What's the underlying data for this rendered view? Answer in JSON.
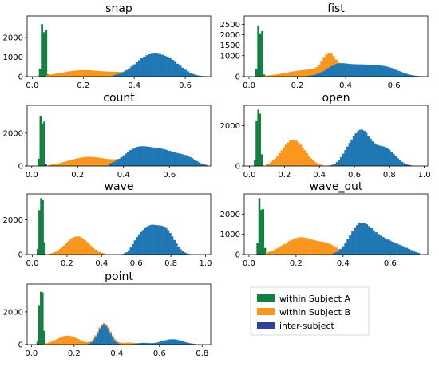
{
  "colors": {
    "within_subject_a": "#138040",
    "within_subject_b": "#f8961e",
    "inter_subject": "#1f77b4",
    "legend_inter_swatch": "#2e3f9c"
  },
  "legend": {
    "entries": [
      {
        "label": "within Subject A",
        "color_key": "within_subject_a"
      },
      {
        "label": "within Subject B",
        "color_key": "within_subject_b"
      },
      {
        "label": "inter-subject",
        "color_key": "inter_subject"
      }
    ]
  },
  "chart_data": [
    {
      "type": "histogram",
      "title": "snap",
      "xlim": [
        -0.02,
        0.7
      ],
      "ylim": [
        0,
        3100
      ],
      "xticks": [
        0.0,
        0.2,
        0.4,
        0.6
      ],
      "xtick_labels": [
        "0.0",
        "0.2",
        "0.4",
        "0.6"
      ],
      "yticks": [
        0,
        1000,
        2000
      ],
      "ytick_labels": [
        "0",
        "1000",
        "2000"
      ],
      "series": [
        {
          "color_key": "within_subject_a",
          "bin_width": 0.008,
          "peaks": [
            [
              0.04,
              2900,
              0.005
            ],
            [
              0.052,
              2650,
              0.004
            ]
          ],
          "range": [
            0.022,
            0.072
          ]
        },
        {
          "color_key": "within_subject_b",
          "bin_width": 0.01,
          "peaks": [
            [
              0.2,
              330,
              0.085
            ],
            [
              0.37,
              180,
              0.06
            ]
          ],
          "range": [
            0.06,
            0.5
          ]
        },
        {
          "color_key": "inter_subject",
          "bin_width": 0.01,
          "peaks": [
            [
              0.46,
              850,
              0.05
            ],
            [
              0.54,
              700,
              0.05
            ],
            [
              0.4,
              200,
              0.05
            ]
          ],
          "range": [
            0.32,
            0.68
          ]
        }
      ]
    },
    {
      "type": "histogram",
      "title": "fist",
      "xlim": [
        -0.02,
        0.74
      ],
      "ylim": [
        0,
        2900
      ],
      "xticks": [
        0.0,
        0.2,
        0.4,
        0.6
      ],
      "xtick_labels": [
        "0.0",
        "0.2",
        "0.4",
        "0.6"
      ],
      "yticks": [
        0,
        1000,
        1500,
        2000,
        2500
      ],
      "ytick_labels": [
        "0",
        "1000",
        "1500",
        "2000",
        "2500"
      ],
      "series": [
        {
          "color_key": "within_subject_a",
          "bin_width": 0.008,
          "peaks": [
            [
              0.04,
              2650,
              0.005
            ],
            [
              0.052,
              2400,
              0.004
            ]
          ],
          "range": [
            0.022,
            0.072
          ]
        },
        {
          "color_key": "within_subject_b",
          "bin_width": 0.01,
          "peaks": [
            [
              0.25,
              330,
              0.09
            ],
            [
              0.33,
              700,
              0.025
            ],
            [
              0.38,
              350,
              0.05
            ]
          ],
          "range": [
            0.06,
            0.56
          ]
        },
        {
          "color_key": "inter_subject",
          "bin_width": 0.01,
          "peaks": [
            [
              0.46,
              560,
              0.09
            ],
            [
              0.36,
              300,
              0.04
            ],
            [
              0.58,
              220,
              0.05
            ]
          ],
          "range": [
            0.24,
            0.72
          ]
        }
      ]
    },
    {
      "type": "histogram",
      "title": "count",
      "xlim": [
        -0.02,
        0.78
      ],
      "ylim": [
        0,
        3700
      ],
      "xticks": [
        0.0,
        0.2,
        0.4,
        0.6
      ],
      "xtick_labels": [
        "0.0",
        "0.2",
        "0.4",
        "0.6"
      ],
      "yticks": [
        0,
        2000
      ],
      "ytick_labels": [
        "0",
        "2000"
      ],
      "series": [
        {
          "color_key": "within_subject_a",
          "bin_width": 0.008,
          "peaks": [
            [
              0.04,
              3300,
              0.005
            ],
            [
              0.052,
              3000,
              0.004
            ]
          ],
          "range": [
            0.022,
            0.072
          ]
        },
        {
          "color_key": "within_subject_b",
          "bin_width": 0.01,
          "peaks": [
            [
              0.25,
              560,
              0.085
            ],
            [
              0.42,
              350,
              0.05
            ]
          ],
          "range": [
            0.08,
            0.56
          ]
        },
        {
          "color_key": "inter_subject",
          "bin_width": 0.01,
          "peaks": [
            [
              0.46,
              1050,
              0.06
            ],
            [
              0.58,
              850,
              0.06
            ],
            [
              0.68,
              400,
              0.04
            ]
          ],
          "range": [
            0.34,
            0.76
          ]
        }
      ]
    },
    {
      "type": "histogram",
      "title": "open",
      "xlim": [
        -0.03,
        1.02
      ],
      "ylim": [
        0,
        3000
      ],
      "xticks": [
        0.0,
        0.2,
        0.4,
        0.6,
        0.8,
        1.0
      ],
      "xtick_labels": [
        "0.0",
        "0.2",
        "0.4",
        "0.6",
        "0.8",
        "1.0"
      ],
      "yticks": [
        0,
        2000
      ],
      "ytick_labels": [
        "0",
        "2000"
      ],
      "series": [
        {
          "color_key": "within_subject_a",
          "bin_width": 0.01,
          "peaks": [
            [
              0.045,
              2850,
              0.007
            ],
            [
              0.06,
              2300,
              0.006
            ]
          ],
          "range": [
            0.02,
            0.09
          ]
        },
        {
          "color_key": "within_subject_b",
          "bin_width": 0.012,
          "peaks": [
            [
              0.25,
              1300,
              0.065
            ]
          ],
          "range": [
            0.1,
            0.42
          ]
        },
        {
          "color_key": "inter_subject",
          "bin_width": 0.012,
          "peaks": [
            [
              0.64,
              1650,
              0.05
            ],
            [
              0.77,
              900,
              0.06
            ],
            [
              0.56,
              500,
              0.04
            ]
          ],
          "range": [
            0.44,
            0.92
          ]
        }
      ]
    },
    {
      "type": "histogram",
      "title": "wave",
      "xlim": [
        -0.03,
        1.03
      ],
      "ylim": [
        0,
        3500
      ],
      "xticks": [
        0.0,
        0.2,
        0.4,
        0.6,
        0.8,
        1.0
      ],
      "xtick_labels": [
        "0.0",
        "0.2",
        "0.4",
        "0.6",
        "0.8",
        "1.0"
      ],
      "yticks": [
        0,
        2000
      ],
      "ytick_labels": [
        "0",
        "2000"
      ],
      "series": [
        {
          "color_key": "within_subject_a",
          "bin_width": 0.01,
          "peaks": [
            [
              0.045,
              3300,
              0.007
            ],
            [
              0.06,
              2800,
              0.006
            ]
          ],
          "range": [
            0.02,
            0.09
          ]
        },
        {
          "color_key": "within_subject_b",
          "bin_width": 0.012,
          "peaks": [
            [
              0.26,
              1050,
              0.065
            ]
          ],
          "range": [
            0.1,
            0.42
          ]
        },
        {
          "color_key": "inter_subject",
          "bin_width": 0.012,
          "peaks": [
            [
              0.67,
              1450,
              0.05
            ],
            [
              0.77,
              1350,
              0.05
            ],
            [
              0.6,
              400,
              0.03
            ]
          ],
          "range": [
            0.52,
            0.93
          ]
        }
      ]
    },
    {
      "type": "histogram",
      "title": "wave_out",
      "xlim": [
        -0.02,
        0.76
      ],
      "ylim": [
        0,
        3000
      ],
      "xticks": [
        0.0,
        0.2,
        0.4,
        0.6
      ],
      "xtick_labels": [
        "0.0",
        "0.2",
        "0.4",
        "0.6"
      ],
      "yticks": [
        0,
        1000,
        2000
      ],
      "ytick_labels": [
        "0",
        "1000",
        "2000"
      ],
      "series": [
        {
          "color_key": "within_subject_a",
          "bin_width": 0.008,
          "peaks": [
            [
              0.045,
              2800,
              0.005
            ],
            [
              0.058,
              2400,
              0.005
            ]
          ],
          "range": [
            0.02,
            0.085
          ]
        },
        {
          "color_key": "within_subject_b",
          "bin_width": 0.01,
          "peaks": [
            [
              0.22,
              850,
              0.07
            ],
            [
              0.34,
              350,
              0.04
            ]
          ],
          "range": [
            0.08,
            0.42
          ]
        },
        {
          "color_key": "inter_subject",
          "bin_width": 0.01,
          "peaks": [
            [
              0.47,
              1300,
              0.045
            ],
            [
              0.56,
              750,
              0.06
            ],
            [
              0.66,
              200,
              0.04
            ]
          ],
          "range": [
            0.36,
            0.72
          ]
        }
      ]
    },
    {
      "type": "histogram",
      "title": "point",
      "xlim": [
        -0.02,
        0.84
      ],
      "ylim": [
        0,
        3700
      ],
      "xticks": [
        0.0,
        0.2,
        0.4,
        0.6,
        0.8
      ],
      "xtick_labels": [
        "0.0",
        "0.2",
        "0.4",
        "0.6",
        "0.8"
      ],
      "yticks": [
        0,
        2000
      ],
      "ytick_labels": [
        "0",
        "2000"
      ],
      "series": [
        {
          "color_key": "within_subject_a",
          "bin_width": 0.008,
          "peaks": [
            [
              0.04,
              3300,
              0.005
            ],
            [
              0.052,
              3000,
              0.005
            ]
          ],
          "range": [
            0.02,
            0.08
          ]
        },
        {
          "color_key": "within_subject_b",
          "bin_width": 0.01,
          "peaks": [
            [
              0.17,
              550,
              0.05
            ],
            [
              0.34,
              1300,
              0.03
            ],
            [
              0.46,
              120,
              0.04
            ]
          ],
          "range": [
            0.06,
            0.52
          ]
        },
        {
          "color_key": "inter_subject",
          "bin_width": 0.01,
          "peaks": [
            [
              0.34,
              1250,
              0.028
            ],
            [
              0.52,
              100,
              0.03
            ],
            [
              0.66,
              330,
              0.05
            ]
          ],
          "range": [
            0.24,
            0.8
          ]
        }
      ]
    }
  ]
}
